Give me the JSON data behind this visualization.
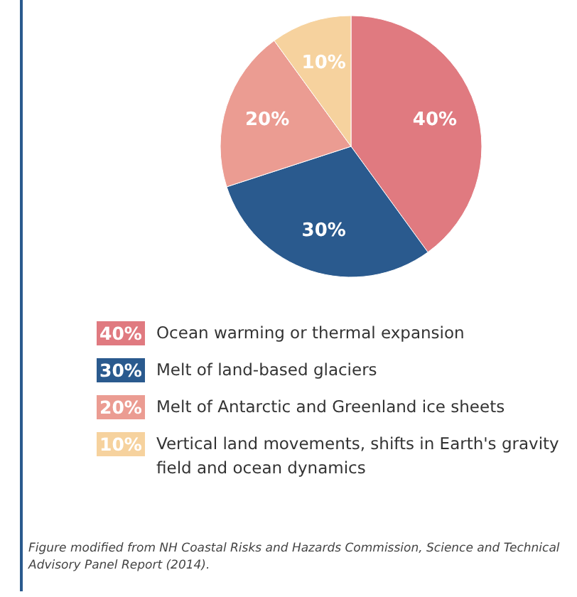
{
  "chart_data": {
    "type": "pie",
    "categories": [
      "Ocean warming or thermal expansion",
      "Melt of land-based glaciers",
      "Melt of Antarctic and Greenland ice sheets",
      "Vertical land movements, shifts in Earth's gravity field and ocean dynamics"
    ],
    "values": [
      40,
      30,
      20,
      10
    ],
    "value_labels": [
      "40%",
      "30%",
      "20%",
      "10%"
    ],
    "colors": [
      "#e07a80",
      "#2a5a8e",
      "#eb9c92",
      "#f6d29e"
    ],
    "legend": "bottom",
    "annotations": [
      "Figure modified from NH Coastal Risks and Hazards Commission, Science and Technical Advisory Panel Report (2014)."
    ]
  }
}
